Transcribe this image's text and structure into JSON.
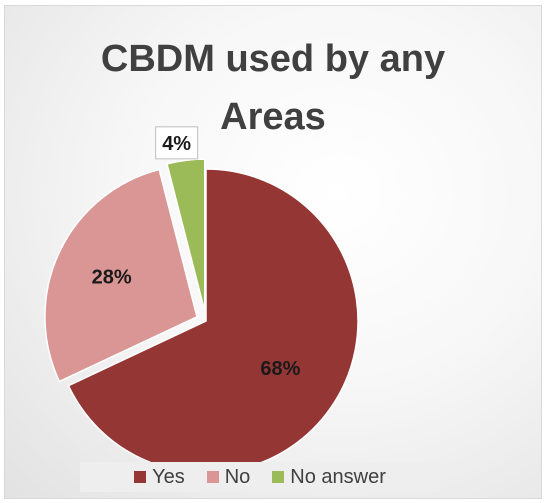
{
  "chart_data": {
    "type": "pie",
    "title_lines": [
      "CBDM used by any",
      "Areas"
    ],
    "categories": [
      "Yes",
      "No",
      "No answer"
    ],
    "values": [
      68,
      28,
      4
    ],
    "data_labels": [
      "68%",
      "28%",
      "4%"
    ],
    "colors": [
      "#943634",
      "#d99694",
      "#9bbb59"
    ],
    "legend_position": "bottom",
    "exploded": true
  }
}
